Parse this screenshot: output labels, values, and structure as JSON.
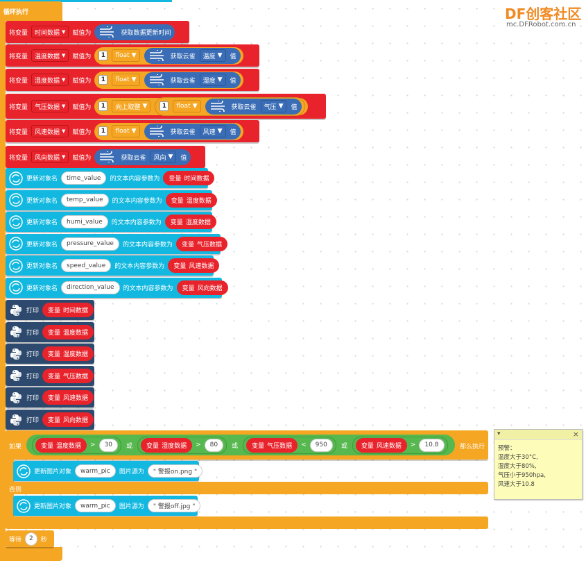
{
  "watermark": {
    "logo": "DF创客社区",
    "url": "mc.DFRobot.com.cn"
  },
  "loop": {
    "label": "循环执行"
  },
  "assign": {
    "set": "将变量",
    "to": "赋值为",
    "rows": [
      {
        "var": "时间数据",
        "expr": "获取数据更新时间"
      },
      {
        "var": "温度数据",
        "cast": "float",
        "fn": "获取云雀",
        "field": "温度",
        "value": "值"
      },
      {
        "var": "湿度数据",
        "cast": "float",
        "fn": "获取云雀",
        "field": "湿度",
        "value": "值"
      },
      {
        "var": "气压数据",
        "round": "向上取整",
        "cast": "float",
        "fn": "获取云雀",
        "field": "气压",
        "value": "值"
      },
      {
        "var": "风速数据",
        "cast": "float",
        "fn": "获取云雀",
        "field": "风速",
        "value": "值"
      },
      {
        "var": "风向数据",
        "fn": "获取云雀",
        "field": "风向",
        "value": "值"
      }
    ],
    "num_icon": "1"
  },
  "update": {
    "prefix": "更新对象名",
    "middle": "的文本内容参数为",
    "var_prefix": "变量",
    "rows": [
      {
        "obj": "time_value",
        "var": "时间数据"
      },
      {
        "obj": "temp_value",
        "var": "温度数据"
      },
      {
        "obj": "humi_value",
        "var": "湿度数据"
      },
      {
        "obj": "pressure_value",
        "var": "气压数据"
      },
      {
        "obj": "speed_value",
        "var": "风速数据"
      },
      {
        "obj": "direction_value",
        "var": "风向数据"
      }
    ]
  },
  "print": {
    "label": "打印",
    "var_prefix": "变量",
    "rows": [
      "时间数据",
      "温度数据",
      "湿度数据",
      "气压数据",
      "风速数据",
      "风向数据"
    ]
  },
  "if_block": {
    "if_label": "如果",
    "then_label": "那么执行",
    "else_label": "否则",
    "or_label": "或",
    "conditions": [
      {
        "var": "温度数据",
        "op": ">",
        "val": "30"
      },
      {
        "var": "湿度数据",
        "op": ">",
        "val": "80"
      },
      {
        "var": "气压数据",
        "op": "<",
        "val": "950"
      },
      {
        "var": "风速数据",
        "op": ">",
        "val": "10.8"
      }
    ],
    "then_action": {
      "prefix": "更新图片对象",
      "obj": "warm_pic",
      "middle": "图片源为",
      "src": "\" 警报on.png \""
    },
    "else_action": {
      "prefix": "更新图片对象",
      "obj": "warm_pic",
      "middle": "图片源为",
      "src": "\" 警报off.jpg \""
    }
  },
  "wait": {
    "label": "等待",
    "value": "2",
    "unit": "秒"
  },
  "comment": {
    "toggle": "▾",
    "close": "×",
    "lines": [
      "预警：",
      "温度大于30°C,",
      "湿度大于80%,",
      "气压小于950hpa,",
      "风速大于10.8"
    ]
  },
  "colors": {
    "loop": "#f5a623",
    "variable": "#e8232c",
    "ui": "#12b8e0",
    "python": "#2d4a6e",
    "logic": "#56b84f",
    "cloud": "#3a6db5"
  }
}
